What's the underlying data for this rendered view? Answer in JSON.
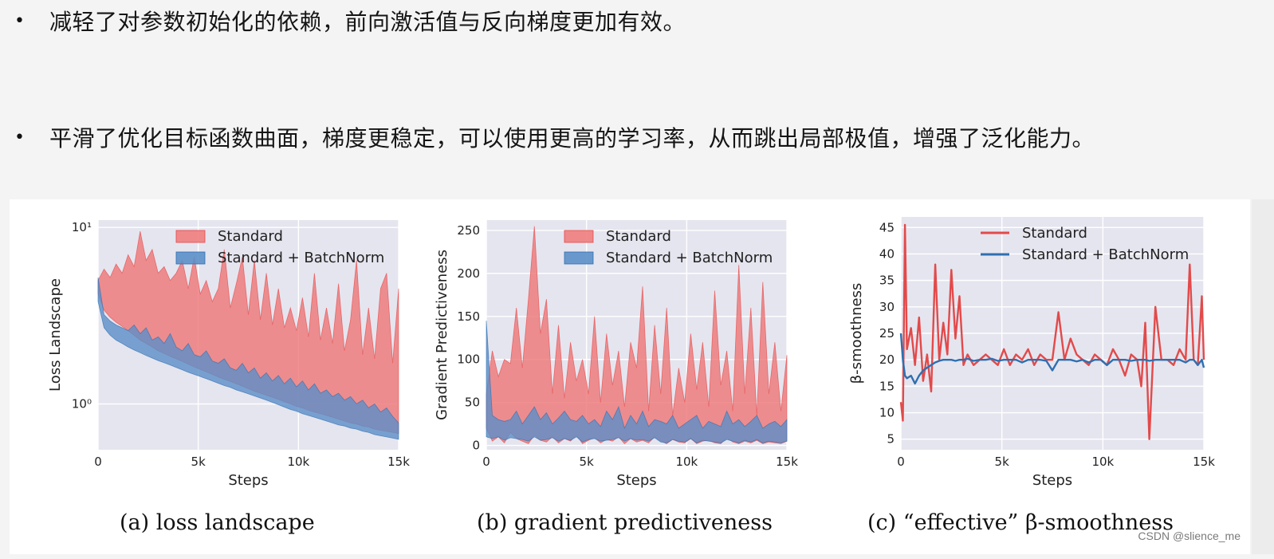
{
  "bullets": [
    "减轻了对参数初始化的依赖，前向激活值与反向梯度更加有效。",
    "平滑了优化目标函数曲面，梯度更稳定，可以使用更高的学习率，从而跳出局部极值，增强了泛化能力。"
  ],
  "bullet_symbol": "•",
  "captions": [
    "(a) loss landscape",
    "(b) gradient predictiveness",
    "(c) “effective” β-smoothness"
  ],
  "watermark": "CSDN @slience_me",
  "colors": {
    "standard": "#e24a4a",
    "standard_fill": "#ef7d7d",
    "batchnorm": "#2f6fb0",
    "batchnorm_fill": "#5b8fc8",
    "plot_bg": "#e5e5ef",
    "grid": "#ffffff"
  },
  "chart_data": [
    {
      "type": "area",
      "id": "loss",
      "xlabel": "Steps",
      "ylabel": "Loss Landscape",
      "yscale": "log",
      "xlim": [
        0,
        15000
      ],
      "ylim": [
        0.55,
        11
      ],
      "x_ticks": [
        0,
        5000,
        10000,
        15000
      ],
      "x_tick_labels": [
        "0",
        "5k",
        "10k",
        "15k"
      ],
      "y_ticks": [
        1,
        10
      ],
      "y_tick_labels": [
        "10⁰",
        "10¹"
      ],
      "legend": {
        "placement": "top-center",
        "entries": [
          "Standard",
          "Standard + BatchNorm"
        ]
      },
      "series": [
        {
          "name": "Standard",
          "x": [
            0,
            300,
            600,
            900,
            1200,
            1500,
            1800,
            2100,
            2400,
            2700,
            3000,
            3300,
            3600,
            3900,
            4200,
            4500,
            4800,
            5100,
            5400,
            5700,
            6000,
            6300,
            6600,
            6900,
            7200,
            7500,
            7800,
            8100,
            8400,
            8700,
            9000,
            9300,
            9600,
            9900,
            10200,
            10500,
            10800,
            11100,
            11400,
            11700,
            12000,
            12300,
            12600,
            12900,
            13200,
            13500,
            13800,
            14100,
            14400,
            14700,
            15000
          ],
          "lower": [
            4.2,
            3.4,
            3.1,
            2.9,
            2.75,
            2.6,
            2.45,
            2.3,
            2.2,
            2.1,
            2.0,
            1.93,
            1.86,
            1.8,
            1.74,
            1.68,
            1.62,
            1.57,
            1.52,
            1.47,
            1.42,
            1.38,
            1.34,
            1.3,
            1.26,
            1.22,
            1.18,
            1.15,
            1.12,
            1.09,
            1.06,
            1.03,
            1.0,
            0.97,
            0.95,
            0.92,
            0.9,
            0.88,
            0.86,
            0.84,
            0.82,
            0.8,
            0.78,
            0.77,
            0.75,
            0.74,
            0.72,
            0.71,
            0.7,
            0.69,
            0.68
          ],
          "upper": [
            5.0,
            5.8,
            5.2,
            6.2,
            5.5,
            7.0,
            6.0,
            9.5,
            6.5,
            7.5,
            5.5,
            6.0,
            5.0,
            5.5,
            6.5,
            4.5,
            6.8,
            4.2,
            5.0,
            3.8,
            4.5,
            7.5,
            3.5,
            4.8,
            6.8,
            3.2,
            6.5,
            3.0,
            5.5,
            2.8,
            4.5,
            2.7,
            3.5,
            2.6,
            4.0,
            2.4,
            5.5,
            2.3,
            3.5,
            2.2,
            4.8,
            2.0,
            3.0,
            6.5,
            1.9,
            3.5,
            1.8,
            4.5,
            5.5,
            1.7,
            4.5
          ]
        },
        {
          "name": "Standard + BatchNorm",
          "x": [
            0,
            300,
            600,
            900,
            1200,
            1500,
            1800,
            2100,
            2400,
            2700,
            3000,
            3300,
            3600,
            3900,
            4200,
            4500,
            4800,
            5100,
            5400,
            5700,
            6000,
            6300,
            6600,
            6900,
            7200,
            7500,
            7800,
            8100,
            8400,
            8700,
            9000,
            9300,
            9600,
            9900,
            10200,
            10500,
            10800,
            11100,
            11400,
            11700,
            12000,
            12300,
            12600,
            12900,
            13200,
            13500,
            13800,
            14100,
            14400,
            14700,
            15000
          ],
          "lower": [
            3.8,
            2.7,
            2.45,
            2.3,
            2.2,
            2.1,
            2.02,
            1.95,
            1.88,
            1.82,
            1.76,
            1.71,
            1.66,
            1.61,
            1.56,
            1.51,
            1.47,
            1.43,
            1.39,
            1.35,
            1.31,
            1.27,
            1.24,
            1.2,
            1.17,
            1.14,
            1.11,
            1.08,
            1.05,
            1.02,
            0.99,
            0.96,
            0.93,
            0.91,
            0.88,
            0.86,
            0.84,
            0.82,
            0.8,
            0.78,
            0.76,
            0.75,
            0.73,
            0.72,
            0.7,
            0.69,
            0.67,
            0.66,
            0.65,
            0.64,
            0.63
          ],
          "upper": [
            5.2,
            3.2,
            2.95,
            2.8,
            2.7,
            2.6,
            2.8,
            2.5,
            2.7,
            2.3,
            2.4,
            2.2,
            2.5,
            2.1,
            2.0,
            2.2,
            1.9,
            1.85,
            2.0,
            1.75,
            1.7,
            1.8,
            1.6,
            1.55,
            1.7,
            1.5,
            1.6,
            1.4,
            1.5,
            1.35,
            1.45,
            1.3,
            1.4,
            1.25,
            1.35,
            1.2,
            1.3,
            1.15,
            1.2,
            1.1,
            1.15,
            1.05,
            1.1,
            1.0,
            1.05,
            0.95,
            1.0,
            0.9,
            0.95,
            0.85,
            0.78
          ]
        }
      ]
    },
    {
      "type": "area",
      "id": "gradient",
      "xlabel": "Steps",
      "ylabel": "Gradient Predictiveness",
      "xlim": [
        0,
        15000
      ],
      "ylim": [
        -5,
        262
      ],
      "x_ticks": [
        0,
        5000,
        10000,
        15000
      ],
      "x_tick_labels": [
        "0",
        "5k",
        "10k",
        "15k"
      ],
      "y_ticks": [
        0,
        50,
        100,
        150,
        200,
        250
      ],
      "y_tick_labels": [
        "0",
        "50",
        "100",
        "150",
        "200",
        "250"
      ],
      "legend": {
        "placement": "top-center",
        "entries": [
          "Standard",
          "Standard + BatchNorm"
        ]
      },
      "series": [
        {
          "name": "Standard",
          "x": [
            0,
            300,
            600,
            900,
            1200,
            1500,
            1800,
            2100,
            2400,
            2700,
            3000,
            3300,
            3600,
            3900,
            4200,
            4500,
            4800,
            5100,
            5400,
            5700,
            6000,
            6300,
            6600,
            6900,
            7200,
            7500,
            7800,
            8100,
            8400,
            8700,
            9000,
            9300,
            9600,
            9900,
            10200,
            10500,
            10800,
            11100,
            11400,
            11700,
            12000,
            12300,
            12600,
            12900,
            13200,
            13500,
            13800,
            14100,
            14400,
            14700,
            15000
          ],
          "lower": [
            20,
            5,
            10,
            3,
            15,
            8,
            5,
            2,
            12,
            6,
            4,
            10,
            3,
            8,
            5,
            12,
            2,
            6,
            9,
            3,
            7,
            5,
            10,
            2,
            8,
            4,
            6,
            3,
            10,
            5,
            2,
            7,
            4,
            3,
            8,
            2,
            5,
            6,
            3,
            2,
            9,
            4,
            2,
            5,
            3,
            6,
            2,
            4,
            3,
            2,
            5
          ],
          "upper": [
            60,
            110,
            80,
            100,
            95,
            160,
            90,
            170,
            255,
            130,
            170,
            60,
            140,
            55,
            120,
            75,
            100,
            60,
            150,
            50,
            130,
            70,
            110,
            45,
            120,
            90,
            185,
            40,
            140,
            60,
            160,
            35,
            90,
            50,
            130,
            65,
            120,
            45,
            180,
            70,
            110,
            40,
            210,
            60,
            160,
            35,
            190,
            60,
            120,
            40,
            105
          ]
        },
        {
          "name": "Standard + BatchNorm",
          "x": [
            0,
            300,
            600,
            900,
            1200,
            1500,
            1800,
            2100,
            2400,
            2700,
            3000,
            3300,
            3600,
            3900,
            4200,
            4500,
            4800,
            5100,
            5400,
            5700,
            6000,
            6300,
            6600,
            6900,
            7200,
            7500,
            7800,
            8100,
            8400,
            8700,
            9000,
            9300,
            9600,
            9900,
            10200,
            10500,
            10800,
            11100,
            11400,
            11700,
            12000,
            12300,
            12600,
            12900,
            13200,
            13500,
            13800,
            14100,
            14400,
            14700,
            15000
          ],
          "lower": [
            10,
            8,
            10,
            6,
            9,
            8,
            7,
            5,
            10,
            6,
            7,
            9,
            5,
            8,
            6,
            10,
            4,
            7,
            8,
            5,
            6,
            7,
            9,
            5,
            8,
            6,
            7,
            5,
            9,
            4,
            3,
            7,
            5,
            4,
            8,
            3,
            6,
            5,
            4,
            3,
            7,
            5,
            3,
            6,
            4,
            7,
            3,
            5,
            4,
            3,
            5
          ],
          "upper": [
            145,
            35,
            30,
            28,
            30,
            40,
            25,
            35,
            45,
            30,
            38,
            25,
            32,
            40,
            30,
            28,
            35,
            25,
            30,
            22,
            40,
            30,
            45,
            20,
            35,
            25,
            40,
            22,
            30,
            28,
            25,
            35,
            20,
            25,
            30,
            35,
            20,
            28,
            25,
            22,
            40,
            25,
            30,
            22,
            28,
            35,
            20,
            25,
            28,
            22,
            30
          ]
        }
      ]
    },
    {
      "type": "line",
      "id": "smoothness",
      "xlabel": "Steps",
      "ylabel": "β-smoothness",
      "xlim": [
        0,
        15000
      ],
      "ylim": [
        3,
        47
      ],
      "x_ticks": [
        0,
        5000,
        10000,
        15000
      ],
      "x_tick_labels": [
        "0",
        "5k",
        "10k",
        "15k"
      ],
      "y_ticks": [
        5,
        10,
        15,
        20,
        25,
        30,
        35,
        40,
        45
      ],
      "y_tick_labels": [
        "5",
        "10",
        "15",
        "20",
        "25",
        "30",
        "35",
        "40",
        "45"
      ],
      "legend": {
        "placement": "top-center",
        "entries": [
          "Standard",
          "Standard + BatchNorm"
        ]
      },
      "series": [
        {
          "name": "Standard",
          "x": [
            0,
            100,
            200,
            300,
            500,
            700,
            900,
            1100,
            1300,
            1500,
            1700,
            1900,
            2100,
            2300,
            2500,
            2700,
            2900,
            3100,
            3300,
            3600,
            3900,
            4200,
            4500,
            4800,
            5100,
            5400,
            5700,
            6000,
            6300,
            6600,
            6900,
            7200,
            7500,
            7800,
            8100,
            8400,
            8700,
            9000,
            9300,
            9600,
            9900,
            10200,
            10500,
            10800,
            11100,
            11400,
            11700,
            11900,
            12100,
            12300,
            12600,
            12900,
            13200,
            13500,
            13800,
            14100,
            14300,
            14500,
            14700,
            14900,
            15000
          ],
          "y": [
            12,
            8.5,
            45.5,
            22,
            26,
            19,
            28,
            16,
            21,
            14,
            38,
            20,
            27,
            21,
            37,
            24,
            32,
            19,
            21,
            19,
            20,
            21,
            20,
            19,
            22,
            19,
            21,
            20,
            22,
            19,
            21,
            20,
            20,
            29,
            20,
            24,
            21,
            20,
            19,
            21,
            20,
            19,
            22,
            20,
            17,
            21,
            20,
            15,
            27,
            5,
            30,
            20,
            20,
            19,
            22,
            20,
            38,
            20,
            19,
            32,
            20
          ]
        },
        {
          "name": "Standard + BatchNorm",
          "x": [
            0,
            100,
            200,
            300,
            500,
            700,
            900,
            1100,
            1300,
            1500,
            1700,
            1900,
            2100,
            2300,
            2500,
            2700,
            2900,
            3100,
            3300,
            3600,
            3900,
            4200,
            4500,
            4800,
            5100,
            5400,
            5700,
            6000,
            6300,
            6600,
            6900,
            7200,
            7500,
            7800,
            8100,
            8400,
            8700,
            9000,
            9300,
            9600,
            9900,
            10200,
            10500,
            10800,
            11100,
            11400,
            11700,
            11900,
            12100,
            12300,
            12600,
            12900,
            13200,
            13500,
            13800,
            14100,
            14300,
            14500,
            14700,
            14900,
            15000
          ],
          "y": [
            25,
            20,
            17,
            16.5,
            17,
            15.5,
            17,
            18,
            18.5,
            19,
            19.5,
            19.8,
            20,
            20,
            20,
            19.8,
            20,
            20,
            20.2,
            19.8,
            20,
            20,
            20.2,
            19.8,
            20,
            20,
            20,
            19.5,
            20,
            20,
            20,
            19.8,
            18,
            20,
            20,
            20,
            19.7,
            20,
            19.5,
            20,
            20,
            19,
            20,
            20,
            20,
            19.8,
            20,
            20,
            20,
            19.8,
            20,
            20,
            20,
            20,
            20,
            19.5,
            20,
            20,
            19,
            20,
            18.5
          ]
        }
      ]
    }
  ]
}
